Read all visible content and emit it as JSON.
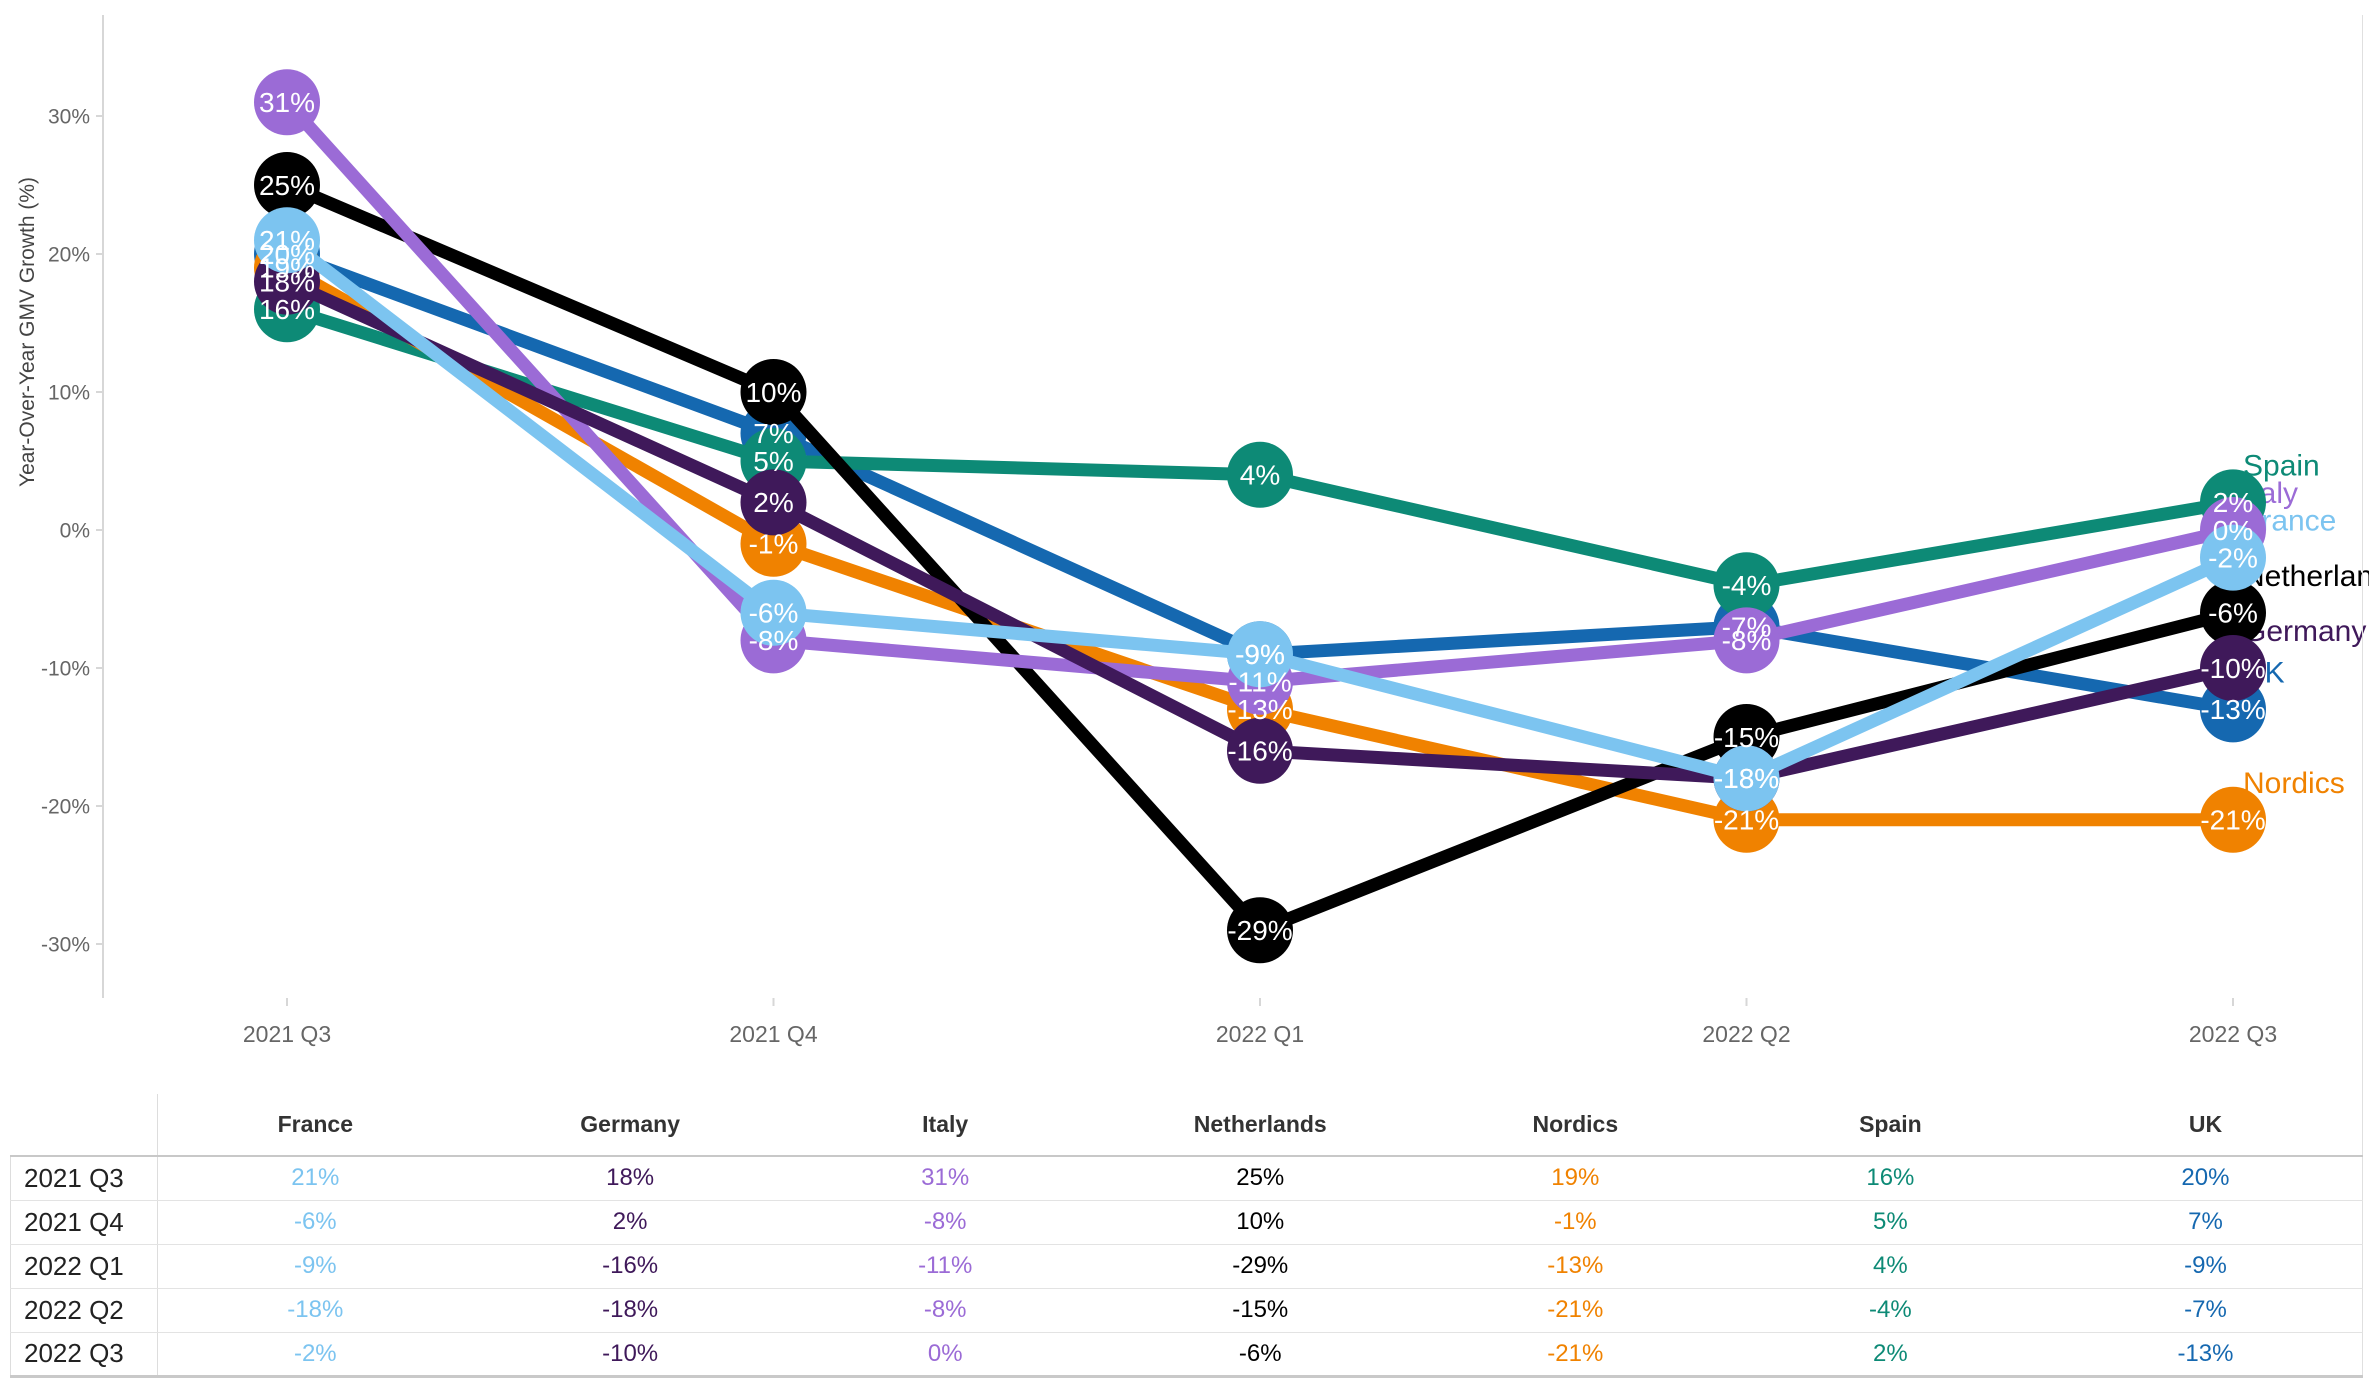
{
  "chart": {
    "y_axis_title": "Year-Over-Year GMV Growth (%)",
    "y_ticks": [
      {
        "label": "30%",
        "value": 30
      },
      {
        "label": "20%",
        "value": 20
      },
      {
        "label": "10%",
        "value": 10
      },
      {
        "label": "0%",
        "value": 0
      },
      {
        "label": "-10%",
        "value": -10
      },
      {
        "label": "-20%",
        "value": -20
      },
      {
        "label": "-30%",
        "value": -30
      }
    ],
    "x_labels": [
      "2021 Q3",
      "2021 Q4",
      "2022 Q1",
      "2022 Q2",
      "2022 Q3"
    ]
  },
  "chart_data": {
    "type": "line",
    "title": "",
    "categories": [
      "2021 Q3",
      "2021 Q4",
      "2022 Q1",
      "2022 Q2",
      "2022 Q3"
    ],
    "series": [
      {
        "name": "UK",
        "color": "#1568B0",
        "values": [
          20,
          7,
          -9,
          -7,
          -13
        ]
      },
      {
        "name": "Spain",
        "color": "#0D8A76",
        "values": [
          16,
          5,
          4,
          -4,
          2
        ]
      },
      {
        "name": "Nordics",
        "color": "#F08200",
        "values": [
          19,
          -1,
          -13,
          -21,
          -21
        ]
      },
      {
        "name": "Netherlands",
        "color": "#000000",
        "values": [
          25,
          10,
          -29,
          -15,
          -6
        ]
      },
      {
        "name": "Italy",
        "color": "#9B6BD6",
        "values": [
          31,
          -8,
          -11,
          -8,
          0
        ]
      },
      {
        "name": "Germany",
        "color": "#3F195A",
        "values": [
          18,
          2,
          -16,
          -18,
          -10
        ]
      },
      {
        "name": "France",
        "color": "#7CC4F0",
        "values": [
          21,
          -6,
          -9,
          -18,
          -2
        ]
      }
    ],
    "xlabel": "",
    "ylabel": "Year-Over-Year GMV Growth (%)",
    "ylim": [
      -35,
      35
    ],
    "grid": false,
    "data_labels": true,
    "data_label_suffix": "%",
    "legend_position": "series-name-labels-at-line-end"
  },
  "table": {
    "columns": [
      "France",
      "Germany",
      "Italy",
      "Netherlands",
      "Nordics",
      "Spain",
      "UK"
    ],
    "rows": [
      {
        "label": "2021 Q3",
        "values": [
          "21%",
          "18%",
          "31%",
          "25%",
          "19%",
          "16%",
          "20%"
        ]
      },
      {
        "label": "2021 Q4",
        "values": [
          "-6%",
          "2%",
          "-8%",
          "10%",
          "-1%",
          "5%",
          "7%"
        ]
      },
      {
        "label": "2022 Q1",
        "values": [
          "-9%",
          "-16%",
          "-11%",
          "-29%",
          "-13%",
          "4%",
          "-9%"
        ]
      },
      {
        "label": "2022 Q2",
        "values": [
          "-18%",
          "-18%",
          "-8%",
          "-15%",
          "-21%",
          "-4%",
          "-7%"
        ]
      },
      {
        "label": "2022 Q3",
        "values": [
          "-2%",
          "-10%",
          "0%",
          "-6%",
          "-21%",
          "2%",
          "-13%"
        ]
      }
    ]
  },
  "colors": {
    "axis_line": "#d7d7d7",
    "tick_text": "#666666",
    "axis_title_text": "#444444",
    "value_label_text": "#ffffff"
  }
}
